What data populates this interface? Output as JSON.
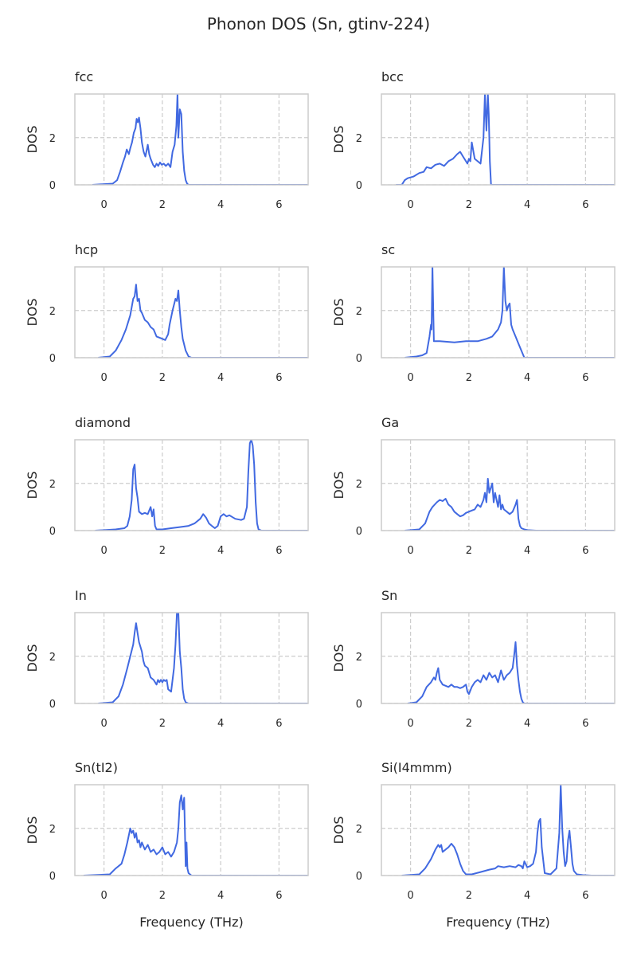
{
  "title": "Phonon DOS (Sn, gtinv-224)",
  "style": {
    "line_color": "#4169e1",
    "grid_color": "#cccccc",
    "spine_color": "#cccccc"
  },
  "chart_data": [
    {
      "type": "line",
      "title": "fcc",
      "ylabel": "DOS",
      "xlabel": "",
      "xlim": [
        -1,
        7
      ],
      "ylim": [
        0,
        3.85
      ],
      "xticks": [
        0,
        2,
        4,
        6
      ],
      "yticks": [
        0,
        2
      ],
      "grid": true,
      "x": [
        -0.4,
        0.3,
        0.45,
        0.55,
        0.65,
        0.72,
        0.78,
        0.85,
        0.9,
        0.96,
        1.02,
        1.08,
        1.12,
        1.16,
        1.2,
        1.25,
        1.3,
        1.36,
        1.42,
        1.5,
        1.55,
        1.6,
        1.68,
        1.74,
        1.8,
        1.86,
        1.92,
        1.98,
        2.05,
        2.12,
        2.2,
        2.28,
        2.35,
        2.42,
        2.48,
        2.52,
        2.55,
        2.6,
        2.65,
        2.7,
        2.75,
        2.8,
        2.85,
        2.9
      ],
      "y": [
        0,
        0.05,
        0.2,
        0.55,
        0.95,
        1.2,
        1.5,
        1.3,
        1.55,
        1.8,
        2.2,
        2.4,
        2.8,
        2.65,
        2.85,
        2.4,
        1.8,
        1.4,
        1.2,
        1.7,
        1.3,
        1.1,
        0.85,
        0.75,
        0.9,
        0.8,
        0.95,
        0.85,
        0.9,
        0.8,
        0.9,
        0.75,
        1.4,
        1.7,
        2.5,
        3.85,
        2.0,
        3.2,
        3.0,
        1.4,
        0.6,
        0.2,
        0.05,
        0
      ],
      "x_end": 7
    },
    {
      "type": "line",
      "title": "bcc",
      "ylabel": "DOS",
      "xlabel": "",
      "xlim": [
        -1,
        7
      ],
      "ylim": [
        0,
        3.85
      ],
      "xticks": [
        0,
        2,
        4,
        6
      ],
      "yticks": [
        0,
        2
      ],
      "grid": true,
      "x": [
        -0.5,
        -0.3,
        -0.2,
        -0.1,
        0.1,
        0.3,
        0.45,
        0.55,
        0.7,
        0.85,
        1.0,
        1.15,
        1.3,
        1.45,
        1.6,
        1.7,
        1.8,
        1.9,
        1.95,
        2.0,
        2.05,
        2.1,
        2.2,
        2.3,
        2.4,
        2.5,
        2.55,
        2.6,
        2.65,
        2.68,
        2.72,
        2.76
      ],
      "y": [
        0,
        0,
        0.2,
        0.28,
        0.35,
        0.5,
        0.55,
        0.75,
        0.7,
        0.85,
        0.9,
        0.8,
        1.0,
        1.1,
        1.3,
        1.4,
        1.2,
        1.0,
        0.9,
        1.1,
        1.0,
        1.8,
        1.1,
        1.0,
        0.9,
        2.0,
        3.85,
        2.3,
        3.85,
        3.0,
        1.0,
        0
      ],
      "x_end": 7
    },
    {
      "type": "line",
      "title": "hcp",
      "ylabel": "DOS",
      "xlabel": "",
      "xlim": [
        -1,
        7
      ],
      "ylim": [
        0,
        3.85
      ],
      "xticks": [
        0,
        2,
        4,
        6
      ],
      "yticks": [
        0,
        2
      ],
      "grid": true,
      "x": [
        -0.2,
        0.2,
        0.4,
        0.6,
        0.75,
        0.9,
        1.0,
        1.05,
        1.1,
        1.15,
        1.2,
        1.25,
        1.3,
        1.4,
        1.5,
        1.6,
        1.7,
        1.8,
        1.9,
        2.0,
        2.1,
        2.2,
        2.25,
        2.35,
        2.45,
        2.5,
        2.55,
        2.6,
        2.65,
        2.7,
        2.8,
        2.9,
        3.0
      ],
      "y": [
        0,
        0.05,
        0.3,
        0.75,
        1.2,
        1.8,
        2.5,
        2.6,
        3.1,
        2.4,
        2.5,
        2.0,
        1.9,
        1.6,
        1.5,
        1.3,
        1.2,
        0.9,
        0.85,
        0.8,
        0.75,
        1.0,
        1.4,
        2.0,
        2.5,
        2.4,
        2.85,
        2.0,
        1.3,
        0.8,
        0.3,
        0.05,
        0
      ],
      "x_end": 7
    },
    {
      "type": "line",
      "title": "sc",
      "ylabel": "DOS",
      "xlabel": "",
      "xlim": [
        -1,
        7
      ],
      "ylim": [
        0,
        3.85
      ],
      "xticks": [
        0,
        2,
        4,
        6
      ],
      "yticks": [
        0,
        2
      ],
      "grid": true,
      "x": [
        -0.2,
        0.2,
        0.4,
        0.55,
        0.65,
        0.7,
        0.72,
        0.75,
        0.8,
        1.0,
        1.5,
        1.9,
        2.3,
        2.6,
        2.8,
        3.0,
        3.1,
        3.15,
        3.2,
        3.25,
        3.3,
        3.35,
        3.4,
        3.45,
        3.5,
        3.6,
        3.7,
        3.8,
        3.9
      ],
      "y": [
        0,
        0.05,
        0.1,
        0.2,
        0.9,
        1.4,
        1.2,
        3.85,
        0.7,
        0.7,
        0.65,
        0.7,
        0.7,
        0.8,
        0.9,
        1.2,
        1.5,
        2.0,
        3.85,
        2.4,
        2.0,
        2.2,
        2.3,
        1.4,
        1.2,
        0.9,
        0.6,
        0.3,
        0
      ],
      "x_end": 7
    },
    {
      "type": "line",
      "title": "diamond",
      "ylabel": "DOS",
      "xlabel": "",
      "xlim": [
        -1,
        7
      ],
      "ylim": [
        0,
        3.85
      ],
      "xticks": [
        0,
        2,
        4,
        6
      ],
      "yticks": [
        0,
        2
      ],
      "grid": true,
      "x": [
        -0.3,
        0.4,
        0.7,
        0.8,
        0.88,
        0.95,
        1.0,
        1.05,
        1.1,
        1.15,
        1.2,
        1.3,
        1.4,
        1.5,
        1.6,
        1.65,
        1.7,
        1.75,
        1.8,
        2.0,
        2.3,
        2.6,
        2.9,
        3.1,
        3.3,
        3.4,
        3.5,
        3.6,
        3.7,
        3.8,
        3.9,
        4.0,
        4.1,
        4.2,
        4.3,
        4.5,
        4.7,
        4.8,
        4.9,
        4.95,
        5.0,
        5.05,
        5.1,
        5.15,
        5.2,
        5.25,
        5.3,
        5.4
      ],
      "y": [
        0,
        0.05,
        0.1,
        0.2,
        0.6,
        1.3,
        2.6,
        2.8,
        1.8,
        1.4,
        0.8,
        0.7,
        0.75,
        0.7,
        1.0,
        0.6,
        0.9,
        0.2,
        0.05,
        0.05,
        0.1,
        0.15,
        0.2,
        0.3,
        0.5,
        0.7,
        0.55,
        0.3,
        0.2,
        0.1,
        0.2,
        0.6,
        0.7,
        0.6,
        0.65,
        0.5,
        0.45,
        0.5,
        1.0,
        2.5,
        3.7,
        3.85,
        3.6,
        2.8,
        1.2,
        0.3,
        0.05,
        0
      ],
      "x_end": 7
    },
    {
      "type": "line",
      "title": "Ga",
      "ylabel": "DOS",
      "xlabel": "",
      "xlim": [
        -1,
        7
      ],
      "ylim": [
        0,
        3.85
      ],
      "xticks": [
        0,
        2,
        4,
        6
      ],
      "yticks": [
        0,
        2
      ],
      "grid": true,
      "x": [
        -0.2,
        0.3,
        0.5,
        0.65,
        0.75,
        0.9,
        1.0,
        1.1,
        1.2,
        1.3,
        1.4,
        1.5,
        1.6,
        1.7,
        1.8,
        1.9,
        2.0,
        2.1,
        2.2,
        2.3,
        2.4,
        2.5,
        2.55,
        2.6,
        2.65,
        2.7,
        2.75,
        2.8,
        2.85,
        2.9,
        3.0,
        3.05,
        3.1,
        3.15,
        3.2,
        3.3,
        3.4,
        3.5,
        3.6,
        3.65,
        3.7,
        3.75,
        3.8,
        3.9,
        4.0,
        4.3
      ],
      "y": [
        0,
        0.05,
        0.3,
        0.8,
        1.0,
        1.2,
        1.3,
        1.25,
        1.35,
        1.1,
        1.0,
        0.8,
        0.7,
        0.6,
        0.65,
        0.75,
        0.8,
        0.85,
        0.9,
        1.1,
        1.0,
        1.3,
        1.6,
        1.2,
        2.2,
        1.6,
        1.8,
        2.0,
        1.2,
        1.6,
        1.0,
        1.5,
        0.9,
        1.1,
        0.9,
        0.8,
        0.7,
        0.8,
        1.1,
        1.3,
        0.5,
        0.2,
        0.1,
        0.05,
        0.02,
        0
      ],
      "x_end": 7
    },
    {
      "type": "line",
      "title": "In",
      "ylabel": "DOS",
      "xlabel": "",
      "xlim": [
        -1,
        7
      ],
      "ylim": [
        0,
        3.85
      ],
      "xticks": [
        0,
        2,
        4,
        6
      ],
      "yticks": [
        0,
        2
      ],
      "grid": true,
      "x": [
        -0.2,
        0.3,
        0.5,
        0.65,
        0.8,
        0.9,
        1.0,
        1.05,
        1.1,
        1.15,
        1.2,
        1.25,
        1.3,
        1.35,
        1.4,
        1.5,
        1.6,
        1.7,
        1.8,
        1.85,
        1.9,
        1.95,
        2.0,
        2.05,
        2.1,
        2.15,
        2.2,
        2.3,
        2.4,
        2.45,
        2.5,
        2.55,
        2.6,
        2.65,
        2.7,
        2.75,
        2.8,
        2.9
      ],
      "y": [
        0,
        0.05,
        0.3,
        0.8,
        1.5,
        2.0,
        2.5,
        3.0,
        3.4,
        3.0,
        2.6,
        2.4,
        2.2,
        1.8,
        1.6,
        1.5,
        1.1,
        1.0,
        0.8,
        1.0,
        0.9,
        1.0,
        0.9,
        1.0,
        0.95,
        1.0,
        0.6,
        0.5,
        1.5,
        2.5,
        3.85,
        3.85,
        2.2,
        1.5,
        0.6,
        0.2,
        0.05,
        0
      ],
      "x_end": 7
    },
    {
      "type": "line",
      "title": "Sn",
      "ylabel": "DOS",
      "xlabel": "",
      "xlim": [
        -1,
        7
      ],
      "ylim": [
        0,
        3.85
      ],
      "xticks": [
        0,
        2,
        4,
        6
      ],
      "yticks": [
        0,
        2
      ],
      "grid": true,
      "x": [
        -0.1,
        0.2,
        0.4,
        0.55,
        0.7,
        0.8,
        0.85,
        0.9,
        0.95,
        1.0,
        1.1,
        1.2,
        1.3,
        1.4,
        1.5,
        1.6,
        1.7,
        1.8,
        1.9,
        1.95,
        2.0,
        2.1,
        2.2,
        2.3,
        2.4,
        2.5,
        2.6,
        2.7,
        2.8,
        2.9,
        3.0,
        3.1,
        3.2,
        3.3,
        3.4,
        3.5,
        3.55,
        3.6,
        3.65,
        3.7,
        3.75,
        3.8,
        3.85,
        3.9
      ],
      "y": [
        0,
        0.05,
        0.3,
        0.7,
        0.9,
        1.1,
        1.0,
        1.3,
        1.5,
        1.0,
        0.8,
        0.75,
        0.7,
        0.8,
        0.7,
        0.7,
        0.65,
        0.7,
        0.8,
        0.5,
        0.4,
        0.7,
        0.9,
        1.0,
        0.9,
        1.2,
        1.0,
        1.3,
        1.1,
        1.2,
        0.9,
        1.4,
        1.0,
        1.2,
        1.3,
        1.5,
        2.0,
        2.6,
        1.6,
        1.0,
        0.5,
        0.2,
        0.05,
        0
      ],
      "x_end": 7
    },
    {
      "type": "line",
      "title": "Sn(tI2)",
      "ylabel": "DOS",
      "xlabel": "Frequency (THz)",
      "xlim": [
        -1,
        7
      ],
      "ylim": [
        0,
        3.85
      ],
      "xticks": [
        0,
        2,
        4,
        6
      ],
      "yticks": [
        0,
        2
      ],
      "grid": true,
      "x": [
        -0.7,
        0.2,
        0.4,
        0.6,
        0.7,
        0.8,
        0.9,
        0.95,
        1.0,
        1.05,
        1.1,
        1.15,
        1.2,
        1.25,
        1.3,
        1.4,
        1.5,
        1.6,
        1.7,
        1.8,
        1.9,
        2.0,
        2.1,
        2.2,
        2.3,
        2.4,
        2.5,
        2.55,
        2.6,
        2.65,
        2.7,
        2.75,
        2.8,
        2.83,
        2.86,
        2.9,
        3.0
      ],
      "y": [
        0,
        0.05,
        0.3,
        0.5,
        0.9,
        1.4,
        2.0,
        1.8,
        1.9,
        1.6,
        1.8,
        1.4,
        1.5,
        1.2,
        1.4,
        1.1,
        1.3,
        1.0,
        1.1,
        0.9,
        1.0,
        1.2,
        0.9,
        1.0,
        0.8,
        1.0,
        1.4,
        2.0,
        3.1,
        3.4,
        2.8,
        3.3,
        0.4,
        1.4,
        0.3,
        0.1,
        0
      ],
      "x_end": 7
    },
    {
      "type": "line",
      "title": "Si(I4mmm)",
      "ylabel": "DOS",
      "xlabel": "Frequency (THz)",
      "xlim": [
        -1,
        7
      ],
      "ylim": [
        0,
        3.85
      ],
      "xticks": [
        0,
        2,
        4,
        6
      ],
      "yticks": [
        0,
        2
      ],
      "grid": true,
      "x": [
        -0.3,
        0.3,
        0.5,
        0.7,
        0.85,
        0.95,
        1.0,
        1.05,
        1.1,
        1.2,
        1.3,
        1.4,
        1.5,
        1.6,
        1.7,
        1.8,
        1.9,
        2.1,
        2.4,
        2.7,
        2.9,
        3.0,
        3.2,
        3.4,
        3.6,
        3.7,
        3.8,
        3.85,
        3.9,
        4.0,
        4.1,
        4.2,
        4.3,
        4.35,
        4.4,
        4.45,
        4.5,
        4.6,
        4.8,
        5.0,
        5.1,
        5.15,
        5.2,
        5.25,
        5.3,
        5.35,
        5.4,
        5.45,
        5.5,
        5.55,
        5.6,
        5.7,
        5.9,
        6.2
      ],
      "y": [
        0,
        0.05,
        0.3,
        0.7,
        1.1,
        1.3,
        1.2,
        1.3,
        1.0,
        1.1,
        1.2,
        1.35,
        1.2,
        0.9,
        0.5,
        0.2,
        0.05,
        0.05,
        0.15,
        0.25,
        0.3,
        0.4,
        0.35,
        0.4,
        0.35,
        0.45,
        0.4,
        0.3,
        0.6,
        0.35,
        0.4,
        0.5,
        1.0,
        1.8,
        2.3,
        2.4,
        1.2,
        0.1,
        0.05,
        0.3,
        1.8,
        3.85,
        2.0,
        1.0,
        0.4,
        0.6,
        1.5,
        1.9,
        1.2,
        0.5,
        0.2,
        0.05,
        0.02,
        0
      ],
      "x_end": 7
    }
  ]
}
